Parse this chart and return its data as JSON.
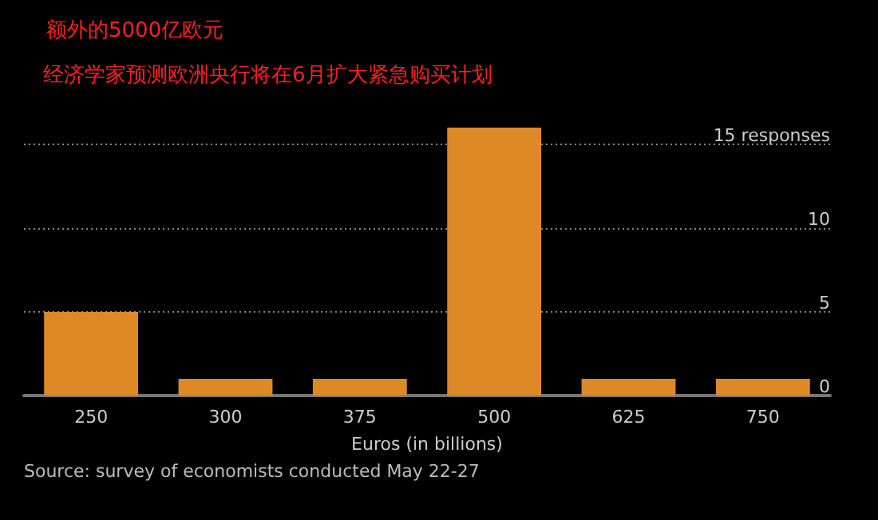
{
  "chart_data": {
    "type": "bar",
    "title": "额外的5000亿欧元",
    "subtitle": "经济学家预测欧洲央行将在6月扩大紧急购买计划",
    "xlabel": "Euros (in billions)",
    "annotations": [
      "Source: survey of economists conducted May 22-27"
    ],
    "categories": [
      "250",
      "300",
      "375",
      "500",
      "625",
      "750"
    ],
    "values": [
      5,
      1,
      1,
      16,
      1,
      1
    ],
    "color": "#dd8a26",
    "ylim": [
      0,
      16
    ],
    "yticks": [
      0,
      5,
      10,
      {
        "value": 15,
        "label": "15 responses"
      }
    ],
    "grid": "y"
  }
}
